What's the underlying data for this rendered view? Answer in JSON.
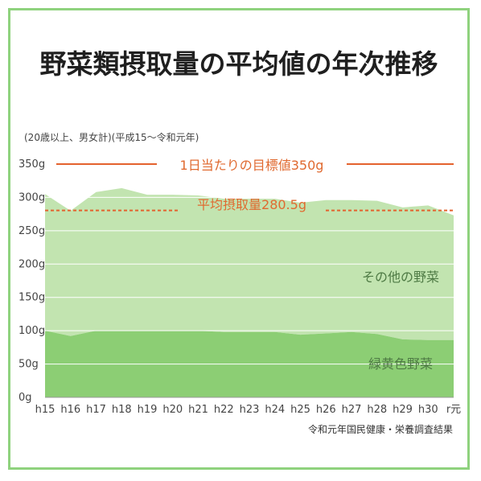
{
  "chart_data": {
    "type": "area",
    "title": "野菜類摂取量の平均値の年次推移",
    "subtitle": "(20歳以上、男女計)(平成15〜令和元年)",
    "categories": [
      "h15",
      "h16",
      "h17",
      "h18",
      "h19",
      "h20",
      "h21",
      "h22",
      "h23",
      "h24",
      "h25",
      "h26",
      "h27",
      "h28",
      "h29",
      "h30",
      "r元"
    ],
    "ylim": [
      0,
      350
    ],
    "yticks": [
      "0g",
      "50g",
      "100g",
      "150g",
      "200g",
      "250g",
      "300g",
      "350g"
    ],
    "ytick_values": [
      0,
      50,
      100,
      150,
      200,
      250,
      300,
      350
    ],
    "series": [
      {
        "name": "緑黄色野菜",
        "values": [
          100,
          92,
          100,
          100,
          100,
          100,
          100,
          98,
          98,
          98,
          94,
          96,
          98,
          95,
          87,
          86,
          86
        ]
      },
      {
        "name": "その他の野菜",
        "values": [
          205,
          188,
          208,
          214,
          204,
          204,
          203,
          200,
          200,
          200,
          198,
          200,
          198,
          200,
          198,
          202,
          187
        ]
      }
    ],
    "target": {
      "label": "1日当たりの目標値350g",
      "value": 350
    },
    "average": {
      "label": "平均摂取量280.5g",
      "value": 280.5
    },
    "source": "令和元年国民健康・栄養調査結果",
    "colors": {
      "green_yellow": "#8cce74",
      "other": "#c2e4b0",
      "target_line": "#e4622e",
      "average_line": "#e4622e",
      "frame": "#8fd27e",
      "series_label": "#4e7a44"
    }
  }
}
